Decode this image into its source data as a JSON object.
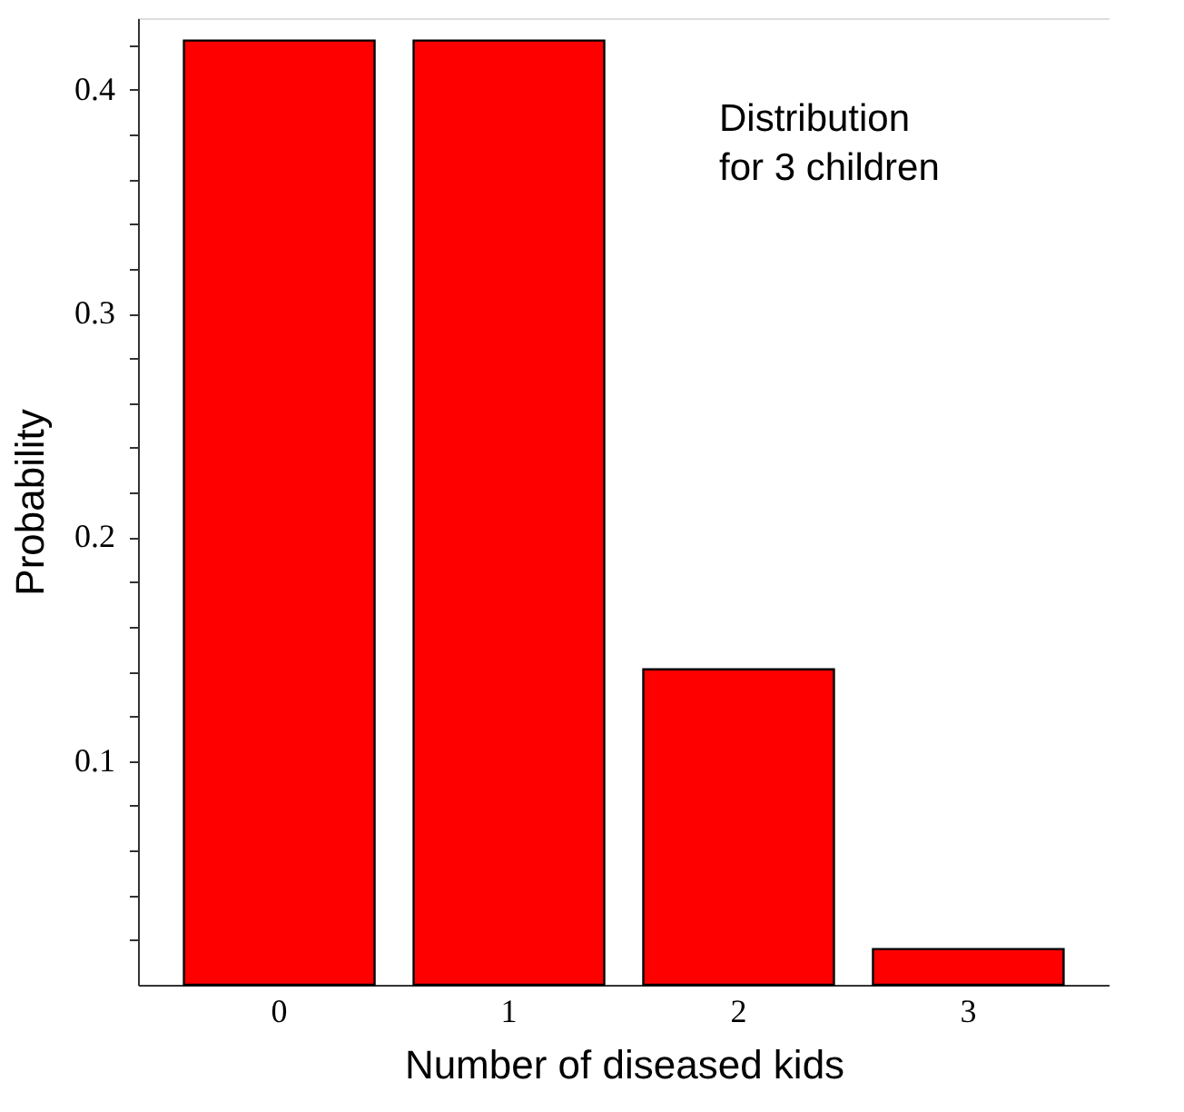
{
  "chart_data": {
    "type": "bar",
    "xlabel": "Number of diseased kids",
    "ylabel": "Probability",
    "categories": [
      "0",
      "1",
      "2",
      "3"
    ],
    "values": [
      0.422,
      0.422,
      0.141,
      0.016
    ],
    "color": "#ff0000",
    "ylim": [
      0,
      0.432
    ],
    "yticks": [
      {
        "value": 0.02,
        "label": null
      },
      {
        "value": 0.04,
        "label": null
      },
      {
        "value": 0.06,
        "label": null
      },
      {
        "value": 0.08,
        "label": null
      },
      0.1,
      {
        "value": 0.12,
        "label": null
      },
      {
        "value": 0.14,
        "label": null
      },
      {
        "value": 0.16,
        "label": null
      },
      {
        "value": 0.18,
        "label": null
      },
      0.2,
      {
        "value": 0.22,
        "label": null
      },
      {
        "value": 0.24,
        "label": null
      },
      {
        "value": 0.26,
        "label": null
      },
      {
        "value": 0.28,
        "label": null
      },
      0.3,
      {
        "value": 0.32,
        "label": null
      },
      {
        "value": 0.34,
        "label": null
      },
      {
        "value": 0.36,
        "label": null
      },
      {
        "value": 0.38,
        "label": null
      },
      0.4,
      {
        "value": 0.42,
        "label": null
      }
    ],
    "annotations": [
      "Distribution\nfor 3 children"
    ],
    "grid": false
  }
}
